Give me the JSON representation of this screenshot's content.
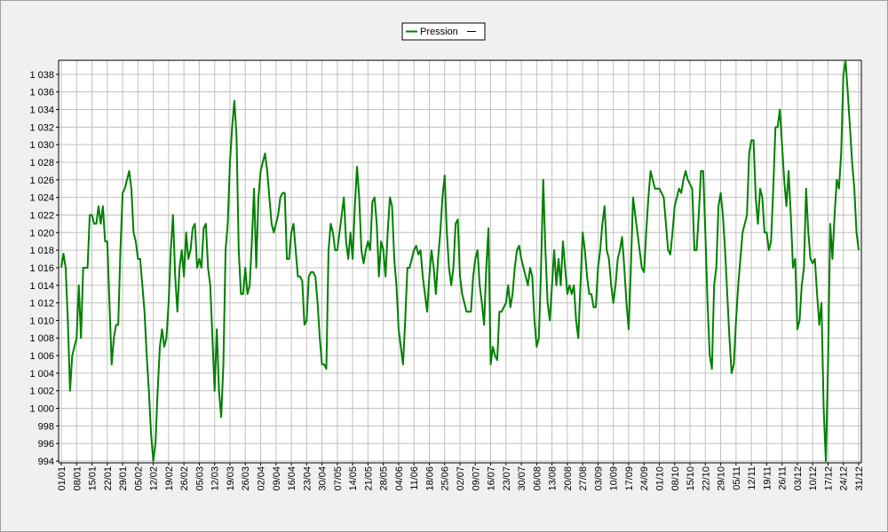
{
  "chart_data": {
    "type": "line",
    "categories": [
      "01/01",
      null,
      null,
      null,
      null,
      null,
      null,
      "08/01",
      null,
      null,
      null,
      null,
      null,
      null,
      "15/01",
      null,
      null,
      null,
      null,
      null,
      null,
      "22/01",
      null,
      null,
      null,
      null,
      null,
      null,
      "29/01",
      null,
      null,
      null,
      null,
      null,
      null,
      "05/02",
      null,
      null,
      null,
      null,
      null,
      null,
      "12/02",
      null,
      null,
      null,
      null,
      null,
      null,
      "19/02",
      null,
      null,
      null,
      null,
      null,
      null,
      "26/02",
      null,
      null,
      null,
      null,
      null,
      null,
      "05/03",
      null,
      null,
      null,
      null,
      null,
      null,
      "12/03",
      null,
      null,
      null,
      null,
      null,
      null,
      "19/03",
      null,
      null,
      null,
      null,
      null,
      null,
      "26/03",
      null,
      null,
      null,
      null,
      null,
      null,
      "02/04",
      null,
      null,
      null,
      null,
      null,
      null,
      "09/04",
      null,
      null,
      null,
      null,
      null,
      null,
      "16/04",
      null,
      null,
      null,
      null,
      null,
      null,
      "23/04",
      null,
      null,
      null,
      null,
      null,
      null,
      "30/04",
      null,
      null,
      null,
      null,
      null,
      null,
      "07/05",
      null,
      null,
      null,
      null,
      null,
      null,
      "14/05",
      null,
      null,
      null,
      null,
      null,
      null,
      "21/05",
      null,
      null,
      null,
      null,
      null,
      null,
      "28/05",
      null,
      null,
      null,
      null,
      null,
      null,
      "04/06",
      null,
      null,
      null,
      null,
      null,
      null,
      "11/06",
      null,
      null,
      null,
      null,
      null,
      null,
      "18/06",
      null,
      null,
      null,
      null,
      null,
      null,
      "25/06",
      null,
      null,
      null,
      null,
      null,
      null,
      "02/07",
      null,
      null,
      null,
      null,
      null,
      null,
      "09/07",
      null,
      null,
      null,
      null,
      null,
      null,
      "16/07",
      null,
      null,
      null,
      null,
      null,
      null,
      "23/07",
      null,
      null,
      null,
      null,
      null,
      null,
      "30/07",
      null,
      null,
      null,
      null,
      null,
      null,
      "06/08",
      null,
      null,
      null,
      null,
      null,
      null,
      "13/08",
      null,
      null,
      null,
      null,
      null,
      null,
      "20/08",
      null,
      null,
      null,
      null,
      null,
      null,
      "27/08",
      null,
      null,
      null,
      null,
      null,
      null,
      "03/09",
      null,
      null,
      null,
      null,
      null,
      null,
      "10/09",
      null,
      null,
      null,
      null,
      null,
      null,
      "17/09",
      null,
      null,
      null,
      null,
      null,
      null,
      "24/09",
      null,
      null,
      null,
      null,
      null,
      null,
      "01/10",
      null,
      null,
      null,
      null,
      null,
      null,
      "08/10",
      null,
      null,
      null,
      null,
      null,
      null,
      "15/10",
      null,
      null,
      null,
      null,
      null,
      null,
      "22/10",
      null,
      null,
      null,
      null,
      null,
      null,
      "29/10",
      null,
      null,
      null,
      null,
      null,
      null,
      "05/11",
      null,
      null,
      null,
      null,
      null,
      null,
      "12/11",
      null,
      null,
      null,
      null,
      null,
      null,
      "19/11",
      null,
      null,
      null,
      null,
      null,
      null,
      "26/11",
      null,
      null,
      null,
      null,
      null,
      null,
      "03/12",
      null,
      null,
      null,
      null,
      null,
      null,
      "10/12",
      null,
      null,
      null,
      null,
      null,
      null,
      "17/12",
      null,
      null,
      null,
      null,
      null,
      null,
      "24/12",
      null,
      null,
      null,
      null,
      null,
      null,
      "31/12"
    ],
    "series": [
      {
        "name": "Pression",
        "color": "#008000",
        "values": [
          1016,
          1017.6,
          1016,
          1010,
          1002,
          1006,
          1007,
          1008,
          1014,
          1008,
          1016,
          1016,
          1016,
          1022,
          1022,
          1021,
          1021,
          1023,
          1021,
          1023,
          1019,
          1019,
          1012,
          1005,
          1008,
          1009.5,
          1009.5,
          1018,
          1024.5,
          1025,
          1026,
          1027,
          1025,
          1020,
          1019,
          1017,
          1017,
          1014,
          1011,
          1006,
          1002,
          997,
          994,
          996,
          1002,
          1007,
          1009,
          1007,
          1008,
          1012,
          1018,
          1022,
          1015,
          1011,
          1016,
          1018,
          1015,
          1020,
          1017,
          1018,
          1020.5,
          1021,
          1016,
          1017,
          1016,
          1020.5,
          1021,
          1016,
          1014,
          1008,
          1002,
          1009,
          1002,
          999,
          1005,
          1018,
          1021,
          1028,
          1032,
          1035,
          1031,
          1018,
          1013,
          1013,
          1016,
          1013,
          1014,
          1019,
          1025,
          1016,
          1024,
          1027,
          1028,
          1029,
          1027,
          1024,
          1021,
          1020,
          1021,
          1022,
          1024,
          1024.5,
          1024.5,
          1017,
          1017,
          1020,
          1021,
          1018,
          1015,
          1015,
          1014.5,
          1009.5,
          1010,
          1015,
          1015.5,
          1015.5,
          1015,
          1012,
          1008,
          1005,
          1005,
          1004.5,
          1018,
          1021,
          1020,
          1018,
          1018,
          1020,
          1022,
          1024,
          1019,
          1017,
          1020,
          1017,
          1023,
          1027.5,
          1024,
          1018,
          1016.5,
          1018,
          1019,
          1018,
          1023.5,
          1024,
          1021,
          1015,
          1019,
          1018,
          1015,
          1020,
          1024,
          1023,
          1017,
          1014,
          1009,
          1007,
          1005,
          1010,
          1016,
          1016,
          1017,
          1018,
          1018.5,
          1017.5,
          1018,
          1015,
          1013,
          1011,
          1015,
          1018,
          1016,
          1013,
          1017,
          1020,
          1024,
          1026.5,
          1020,
          1016,
          1014,
          1016,
          1021,
          1021.5,
          1015,
          1013,
          1012,
          1011,
          1011,
          1011,
          1015,
          1017,
          1018,
          1014,
          1012,
          1009.5,
          1016,
          1020.5,
          1005,
          1007,
          1006,
          1005.5,
          1011,
          1011,
          1011.5,
          1012,
          1014,
          1011.5,
          1013,
          1016,
          1018,
          1018.5,
          1017,
          1016,
          1015,
          1014,
          1016,
          1015,
          1010,
          1007,
          1008,
          1016,
          1026,
          1018,
          1012,
          1010,
          1014,
          1018,
          1014,
          1017,
          1014,
          1019,
          1016,
          1013,
          1014,
          1013,
          1014,
          1010,
          1008,
          1014,
          1020,
          1018,
          1015,
          1013,
          1013,
          1011.5,
          1011.5,
          1016,
          1018,
          1021,
          1023,
          1018,
          1017,
          1014,
          1012,
          1014,
          1017,
          1018,
          1019.5,
          1016,
          1012,
          1009,
          1016,
          1024,
          1022,
          1020,
          1018,
          1016,
          1015.5,
          1020,
          1024,
          1027,
          1026,
          1025,
          1025,
          1025,
          1024.5,
          1024,
          1021,
          1018,
          1017.5,
          1020,
          1023,
          1024,
          1025,
          1024.5,
          1026,
          1027,
          1026,
          1025.5,
          1025,
          1018,
          1018,
          1022,
          1027,
          1027,
          1020,
          1012,
          1006,
          1004.5,
          1014,
          1016,
          1023,
          1024.5,
          1022,
          1018,
          1013,
          1008,
          1004,
          1005,
          1010,
          1014,
          1017,
          1020,
          1021,
          1022,
          1029,
          1030.5,
          1030.5,
          1024,
          1021,
          1025,
          1024,
          1020,
          1020,
          1018,
          1019,
          1025,
          1032,
          1032,
          1034,
          1030,
          1026,
          1023,
          1027,
          1022,
          1016,
          1017,
          1009,
          1010,
          1014,
          1016,
          1025,
          1020,
          1017,
          1016.5,
          1017,
          1013,
          1009.5,
          1012,
          1000,
          994,
          1005,
          1021,
          1017,
          1022,
          1026,
          1025,
          1029,
          1038,
          1039.5,
          1036,
          1032,
          1028,
          1025,
          1020,
          1018
        ]
      }
    ],
    "ylim": [
      993.8,
      1039.6
    ],
    "yticks": [
      994,
      996,
      998,
      {
        "value": 1000,
        "label": "1 000"
      },
      {
        "value": 1002,
        "label": "1 002"
      },
      {
        "value": 1004,
        "label": "1 004"
      },
      {
        "value": 1006,
        "label": "1 006"
      },
      {
        "value": 1008,
        "label": "1 008"
      },
      {
        "value": 1010,
        "label": "1 010"
      },
      {
        "value": 1012,
        "label": "1 012"
      },
      {
        "value": 1014,
        "label": "1 014"
      },
      {
        "value": 1016,
        "label": "1 016"
      },
      {
        "value": 1018,
        "label": "1 018"
      },
      {
        "value": 1020,
        "label": "1 020"
      },
      {
        "value": 1022,
        "label": "1 022"
      },
      {
        "value": 1024,
        "label": "1 024"
      },
      {
        "value": 1026,
        "label": "1 026"
      },
      {
        "value": 1028,
        "label": "1 028"
      },
      {
        "value": 1030,
        "label": "1 030"
      },
      {
        "value": 1032,
        "label": "1 032"
      },
      {
        "value": 1034,
        "label": "1 034"
      },
      {
        "value": 1036,
        "label": "1 036"
      },
      {
        "value": 1038,
        "label": "1 038"
      }
    ],
    "grid": true,
    "legend": "top"
  }
}
